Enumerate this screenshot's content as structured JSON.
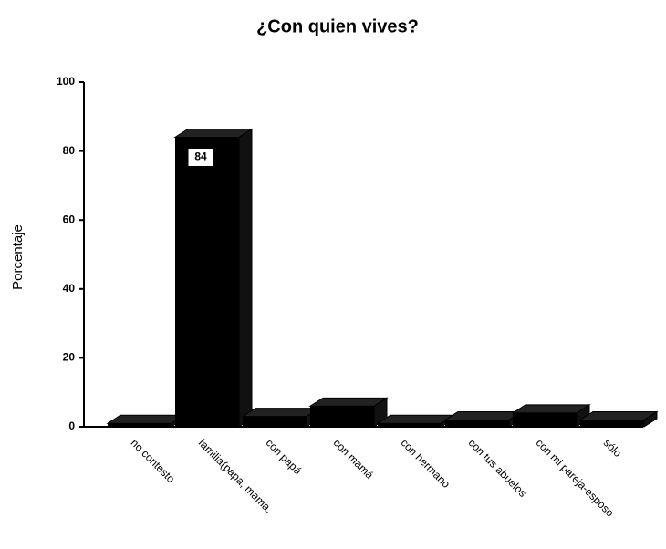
{
  "chart_data": {
    "type": "bar3d",
    "title": "¿Con quien vives?",
    "y_label": "Porcentaje",
    "categories": [
      "no contesto",
      "familia(papa, mama,",
      "con papá",
      "con mamá",
      "con hermano",
      "con tus abuelos",
      "con mi pareja-esposo",
      "sólo"
    ],
    "values": [
      1,
      84,
      3,
      6,
      1,
      2,
      4,
      2
    ],
    "value_labels": [
      null,
      "84",
      null,
      null,
      null,
      null,
      null,
      null
    ],
    "color": "#000000",
    "ylim": [
      0,
      100
    ],
    "yticks": [
      0,
      20,
      40,
      60,
      80,
      100
    ],
    "grid": false
  }
}
